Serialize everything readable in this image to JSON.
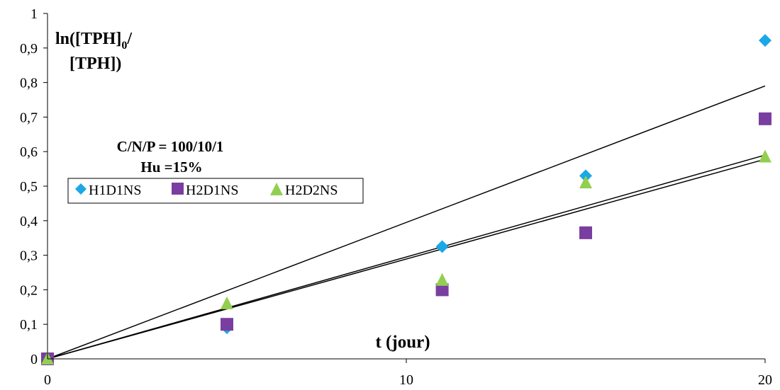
{
  "chart_data": {
    "type": "scatter",
    "ylabel": {
      "pre": "ln([TPH]",
      "sub": "0",
      "post": "/",
      "line2": "[TPH])"
    },
    "xlabel": "t  (jour)",
    "annotations": [
      "C/N/P = 100/10/1",
      "Hu =15%"
    ],
    "xlim": [
      0,
      20
    ],
    "ylim": [
      0,
      1
    ],
    "x_ticks": [
      0,
      10,
      20
    ],
    "x_tick_labels": [
      "0",
      "10",
      "20"
    ],
    "y_ticks": [
      0,
      0.1,
      0.2,
      0.3,
      0.4,
      0.5,
      0.6,
      0.7,
      0.8,
      0.9,
      1
    ],
    "y_tick_labels": [
      "0",
      "0,1",
      "0,2",
      "0,3",
      "0,4",
      "0,5",
      "0,6",
      "0,7",
      "0,8",
      "0,9",
      "1"
    ],
    "grid": false,
    "legend_position": "middle-left",
    "series": [
      {
        "name": "H1D1NS",
        "marker": "diamond",
        "color": "#1aa8e6",
        "x": [
          0,
          5,
          11,
          15,
          20
        ],
        "y": [
          0,
          0.09,
          0.325,
          0.53,
          0.922
        ]
      },
      {
        "name": "H2D1NS",
        "marker": "square",
        "color": "#7a3ea0",
        "x": [
          0,
          5,
          11,
          15,
          20
        ],
        "y": [
          0,
          0.1,
          0.2,
          0.365,
          0.695
        ]
      },
      {
        "name": "H2D2NS",
        "marker": "triangle",
        "color": "#92cf50",
        "x": [
          0,
          5,
          11,
          15,
          20
        ],
        "y": [
          0,
          0.16,
          0.228,
          0.51,
          0.585
        ]
      }
    ],
    "trendlines": [
      {
        "x": [
          0,
          20
        ],
        "y": [
          0,
          0.79
        ]
      },
      {
        "x": [
          0,
          20
        ],
        "y": [
          0,
          0.59
        ]
      },
      {
        "x": [
          0,
          20
        ],
        "y": [
          0,
          0.578
        ]
      }
    ]
  }
}
